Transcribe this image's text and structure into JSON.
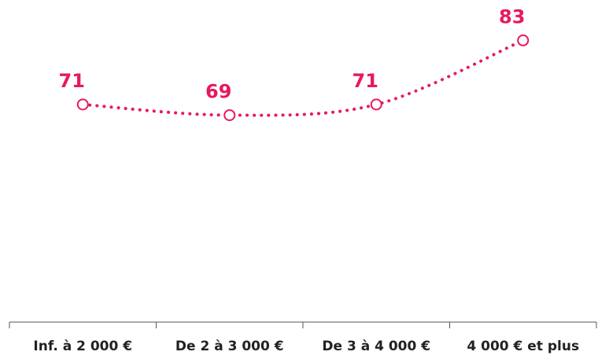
{
  "chart_data": {
    "type": "line",
    "categories": [
      "Inf. à 2 000 €",
      "De 2 à 3 000 €",
      "De 3 à 4 000 €",
      "4 000 € et plus"
    ],
    "series": [
      {
        "values": [
          71,
          69,
          71,
          83
        ]
      }
    ],
    "value_labels": [
      "71",
      "69",
      "71",
      "83"
    ],
    "line_style": "dotted, smoothed, open circle markers",
    "color": "#e8195e",
    "axis_color": "#555555",
    "grid": false,
    "legend": "none"
  }
}
